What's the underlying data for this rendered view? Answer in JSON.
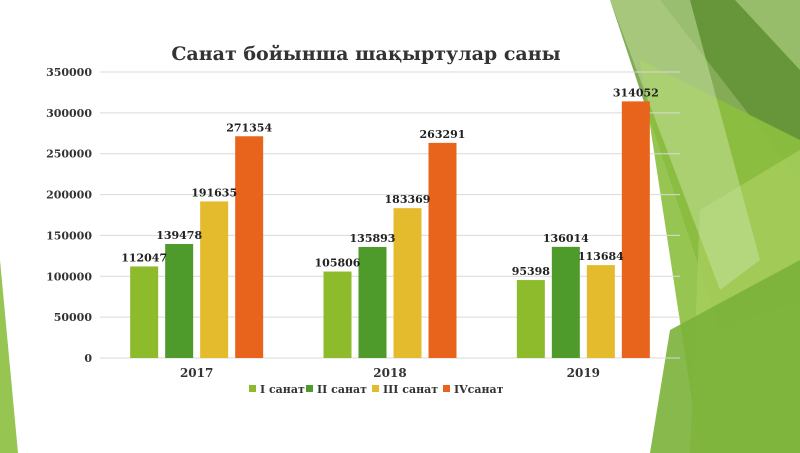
{
  "chart_data": {
    "type": "bar",
    "title": "Санат бойынша  шақыртулар  саны",
    "categories": [
      "2017",
      "2018",
      "2019"
    ],
    "series": [
      {
        "name": "I санат",
        "color": "#8DBB2C",
        "values": [
          112047,
          105806,
          95398
        ]
      },
      {
        "name": "II санат",
        "color": "#4E9A2A",
        "values": [
          139478,
          135893,
          136014
        ]
      },
      {
        "name": "III санат",
        "color": "#E4BB2C",
        "values": [
          191635,
          183369,
          113684
        ]
      },
      {
        "name": "IVсанат",
        "color": "#E8641C",
        "values": [
          271354,
          263291,
          314052
        ]
      }
    ],
    "ylim": [
      0,
      350000
    ],
    "yticks": [
      0,
      50000,
      100000,
      150000,
      200000,
      250000,
      300000,
      350000
    ],
    "grid": true,
    "legend_position": "bottom",
    "xlabel": "",
    "ylabel": ""
  },
  "decoration": {
    "accent_colors": [
      "#7FB03A",
      "#5E9A2E",
      "#A8D06A",
      "#C9E29A",
      "#4F7F2A"
    ]
  }
}
